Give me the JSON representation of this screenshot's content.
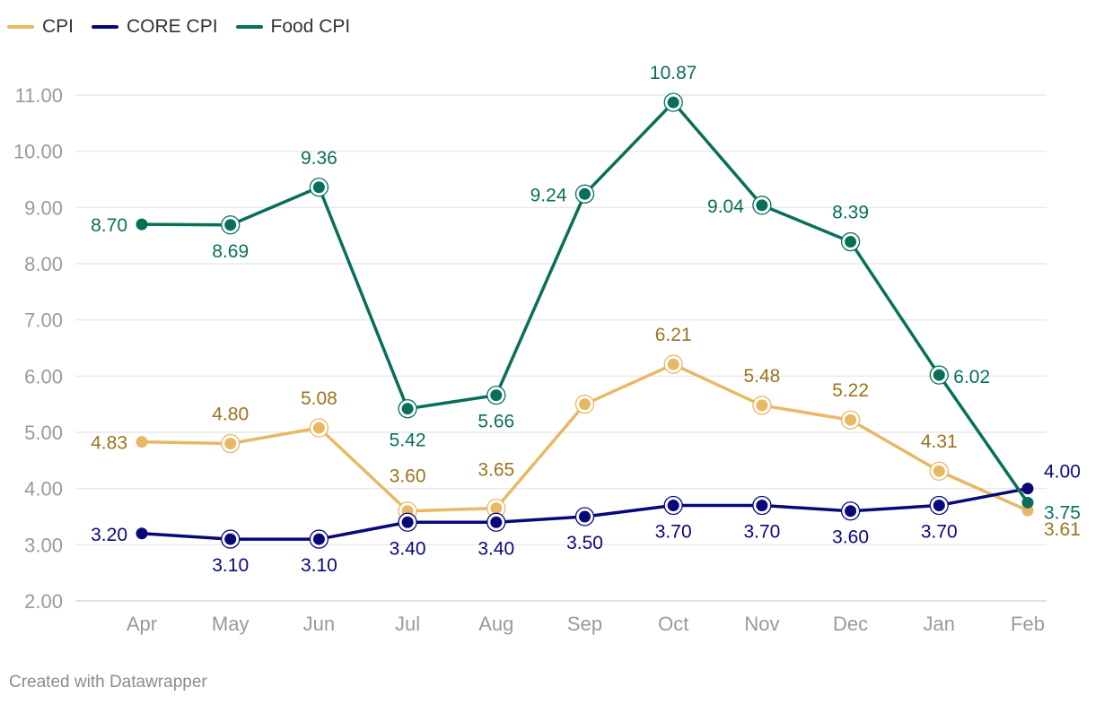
{
  "legend": [
    {
      "name": "CPI",
      "color": "#e8b865"
    },
    {
      "name": "CORE CPI",
      "color": "#08087a"
    },
    {
      "name": "Food CPI",
      "color": "#08705a"
    }
  ],
  "footer": "Created with Datawrapper",
  "chart_data": {
    "type": "line",
    "title": "",
    "xlabel": "",
    "ylabel": "",
    "categories": [
      "Apr",
      "May",
      "Jun",
      "Jul",
      "Aug",
      "Sep",
      "Oct",
      "Nov",
      "Dec",
      "Jan",
      "Feb"
    ],
    "ylim": [
      2.0,
      11.0
    ],
    "yticks": [
      "2.00",
      "3.00",
      "4.00",
      "5.00",
      "6.00",
      "7.00",
      "8.00",
      "9.00",
      "10.00",
      "11.00"
    ],
    "grid": true,
    "legend_position": "top-left",
    "series": [
      {
        "name": "CPI",
        "line_color": "#e8b865",
        "label_color": "#9a741e",
        "values": [
          4.83,
          4.8,
          5.08,
          3.6,
          3.65,
          5.5,
          6.21,
          5.48,
          5.22,
          4.31,
          3.61
        ],
        "labels": [
          "4.83",
          "4.80",
          "5.08",
          "3.60",
          "3.65",
          null,
          "6.21",
          "5.48",
          "5.22",
          "4.31",
          "3.61"
        ]
      },
      {
        "name": "CORE CPI",
        "line_color": "#08087a",
        "label_color": "#08087a",
        "values": [
          3.2,
          3.1,
          3.1,
          3.4,
          3.4,
          3.5,
          3.7,
          3.7,
          3.6,
          3.7,
          4.0
        ],
        "labels": [
          "3.20",
          "3.10",
          "3.10",
          "3.40",
          "3.40",
          "3.50",
          "3.70",
          "3.70",
          "3.60",
          "3.70",
          "4.00"
        ]
      },
      {
        "name": "Food CPI",
        "line_color": "#08705a",
        "label_color": "#08705a",
        "values": [
          8.7,
          8.69,
          9.36,
          5.42,
          5.66,
          9.24,
          10.87,
          9.04,
          8.39,
          6.02,
          3.75
        ],
        "labels": [
          "8.70",
          "8.69",
          "9.36",
          "5.42",
          "5.66",
          "9.24",
          "10.87",
          "9.04",
          "8.39",
          "6.02",
          "3.75"
        ]
      }
    ]
  }
}
